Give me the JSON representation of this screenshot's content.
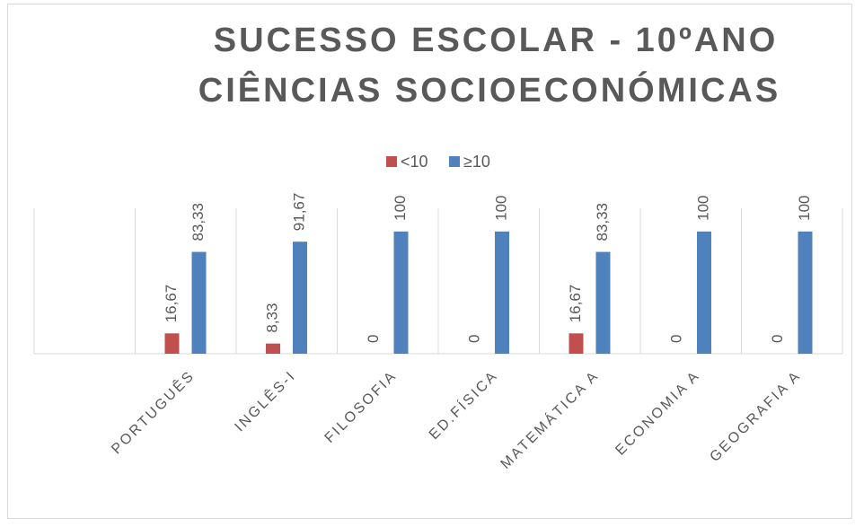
{
  "chart_data": {
    "type": "bar",
    "title": [
      "SUCESSO ESCOLAR - 10ºANO",
      "CIÊNCIAS SOCIOECONÓMICAS"
    ],
    "categories": [
      null,
      "PORTUGUÊS",
      "INGLÊS-I",
      "FILOSOFIA",
      "ED.FÍSICA",
      "MATEMÁTICA A",
      "ECONOMIA A",
      "GEOGRAFIA A"
    ],
    "series": [
      {
        "name": "<10",
        "color": "#c0504d",
        "values": [
          null,
          16.67,
          8.33,
          0,
          0,
          16.67,
          0,
          0
        ],
        "value_labels": [
          null,
          "16,67",
          "8,33",
          "0",
          "0",
          "16,67",
          "0",
          "0"
        ]
      },
      {
        "name": "≥10",
        "color": "#4f81bd",
        "values": [
          null,
          83.33,
          91.67,
          100,
          100,
          83.33,
          100,
          100
        ],
        "value_labels": [
          null,
          "83,33",
          "91,67",
          "100",
          "100",
          "83,33",
          "100",
          "100"
        ]
      }
    ],
    "ylim": [
      0,
      119
    ],
    "legend": "top",
    "grid": true
  }
}
